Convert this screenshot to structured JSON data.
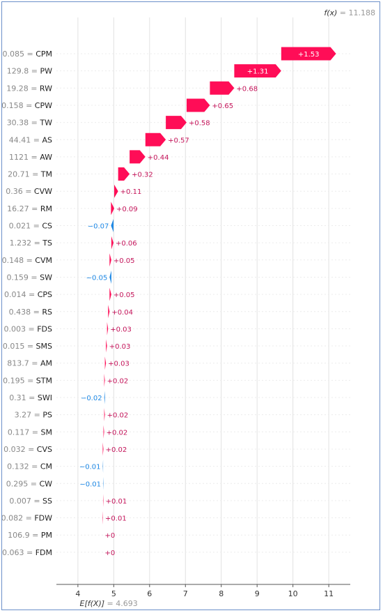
{
  "chart_data": {
    "type": "waterfall",
    "f_x": {
      "label": "f(x)",
      "value": "11.188"
    },
    "expected_value": {
      "label": "E[f(X)]",
      "value": "4.693",
      "numeric": 4.693
    },
    "xlim": [
      3.4,
      11.6
    ],
    "xticks": [
      4,
      5,
      6,
      7,
      8,
      9,
      10,
      11
    ],
    "colors": {
      "positive": "#ff0d57",
      "negative": "#1e88e5",
      "positive_text": "#c4145a",
      "negative_text": "#1e88e5"
    },
    "features": [
      {
        "value": "0.085",
        "name": "CPM",
        "shap": 1.53,
        "label": "+1.53"
      },
      {
        "value": "129.8",
        "name": "PW",
        "shap": 1.31,
        "label": "+1.31"
      },
      {
        "value": "19.28",
        "name": "RW",
        "shap": 0.68,
        "label": "+0.68"
      },
      {
        "value": "0.158",
        "name": "CPW",
        "shap": 0.65,
        "label": "+0.65"
      },
      {
        "value": "30.38",
        "name": "TW",
        "shap": 0.58,
        "label": "+0.58"
      },
      {
        "value": "44.41",
        "name": "AS",
        "shap": 0.57,
        "label": "+0.57"
      },
      {
        "value": "1121",
        "name": "AW",
        "shap": 0.44,
        "label": "+0.44"
      },
      {
        "value": "20.71",
        "name": "TM",
        "shap": 0.32,
        "label": "+0.32"
      },
      {
        "value": "0.36",
        "name": "CVW",
        "shap": 0.11,
        "label": "+0.11"
      },
      {
        "value": "16.27",
        "name": "RM",
        "shap": 0.09,
        "label": "+0.09"
      },
      {
        "value": "0.021",
        "name": "CS",
        "shap": -0.07,
        "label": "−0.07"
      },
      {
        "value": "1.232",
        "name": "TS",
        "shap": 0.06,
        "label": "+0.06"
      },
      {
        "value": "0.148",
        "name": "CVM",
        "shap": 0.05,
        "label": "+0.05"
      },
      {
        "value": "0.159",
        "name": "SW",
        "shap": -0.05,
        "label": "−0.05"
      },
      {
        "value": "0.014",
        "name": "CPS",
        "shap": 0.05,
        "label": "+0.05"
      },
      {
        "value": "0.438",
        "name": "RS",
        "shap": 0.04,
        "label": "+0.04"
      },
      {
        "value": "0.003",
        "name": "FDS",
        "shap": 0.03,
        "label": "+0.03"
      },
      {
        "value": "0.015",
        "name": "SMS",
        "shap": 0.03,
        "label": "+0.03"
      },
      {
        "value": "813.7",
        "name": "AM",
        "shap": 0.03,
        "label": "+0.03"
      },
      {
        "value": "0.195",
        "name": "STM",
        "shap": 0.02,
        "label": "+0.02"
      },
      {
        "value": "0.31",
        "name": "SWI",
        "shap": -0.02,
        "label": "−0.02"
      },
      {
        "value": "3.27",
        "name": "PS",
        "shap": 0.02,
        "label": "+0.02"
      },
      {
        "value": "0.117",
        "name": "SM",
        "shap": 0.02,
        "label": "+0.02"
      },
      {
        "value": "0.032",
        "name": "CVS",
        "shap": 0.02,
        "label": "+0.02"
      },
      {
        "value": "0.132",
        "name": "CM",
        "shap": -0.01,
        "label": "−0.01"
      },
      {
        "value": "0.295",
        "name": "CW",
        "shap": -0.01,
        "label": "−0.01"
      },
      {
        "value": "0.007",
        "name": "SS",
        "shap": 0.01,
        "label": "+0.01"
      },
      {
        "value": "0.082",
        "name": "FDW",
        "shap": 0.01,
        "label": "+0.01"
      },
      {
        "value": "106.9",
        "name": "PM",
        "shap": 0.0,
        "label": "+0"
      },
      {
        "value": "0.063",
        "name": "FDM",
        "shap": 0.0,
        "label": "+0"
      }
    ]
  }
}
